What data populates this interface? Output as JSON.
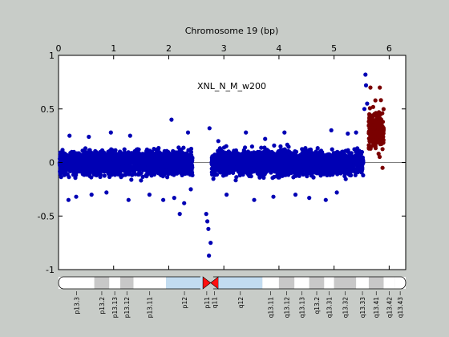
{
  "chart_data": {
    "type": "scatter",
    "title": "",
    "xlabel": "Chromosome 19 (bp)",
    "ylabel": "",
    "annotation": "XNL_N_M_w200",
    "xlim": [
      0,
      6.3
    ],
    "ylim": [
      -1,
      1
    ],
    "x_ticks": [
      0,
      1,
      2,
      3,
      4,
      5,
      6
    ],
    "y_ticks": [
      -1,
      -0.5,
      0,
      0.5,
      1
    ],
    "grid": false,
    "colors": {
      "normal": "#0000b4",
      "highlight": "#7a0000",
      "baseline": "#7f7f7f",
      "plot_bg": "#ffffff",
      "figure_bg": "#c8ccc8"
    },
    "series": [
      {
        "role": "normal",
        "segments": [
          {
            "x_range": [
              0.02,
              2.43
            ],
            "y_mean": 0.0,
            "y_sd": 0.07
          },
          {
            "x_range": [
              2.78,
              5.53
            ],
            "y_mean": 0.0,
            "y_sd": 0.07
          }
        ],
        "points": [
          {
            "x": 0.2,
            "y": 0.25
          },
          {
            "x": 0.18,
            "y": -0.35
          },
          {
            "x": 0.32,
            "y": -0.32
          },
          {
            "x": 0.55,
            "y": 0.24
          },
          {
            "x": 0.6,
            "y": -0.3
          },
          {
            "x": 0.87,
            "y": -0.28
          },
          {
            "x": 0.95,
            "y": 0.28
          },
          {
            "x": 1.27,
            "y": -0.35
          },
          {
            "x": 1.3,
            "y": 0.25
          },
          {
            "x": 1.65,
            "y": -0.3
          },
          {
            "x": 1.9,
            "y": -0.35
          },
          {
            "x": 2.05,
            "y": 0.4
          },
          {
            "x": 2.1,
            "y": -0.33
          },
          {
            "x": 2.2,
            "y": -0.48
          },
          {
            "x": 2.28,
            "y": -0.38
          },
          {
            "x": 2.35,
            "y": 0.28
          },
          {
            "x": 2.4,
            "y": -0.25
          },
          {
            "x": 2.68,
            "y": -0.48
          },
          {
            "x": 2.7,
            "y": -0.55
          },
          {
            "x": 2.72,
            "y": -0.62
          },
          {
            "x": 2.73,
            "y": -0.87
          },
          {
            "x": 2.74,
            "y": 0.32
          },
          {
            "x": 2.76,
            "y": -0.75
          },
          {
            "x": 2.9,
            "y": 0.2
          },
          {
            "x": 3.05,
            "y": -0.3
          },
          {
            "x": 3.4,
            "y": 0.28
          },
          {
            "x": 3.55,
            "y": -0.35
          },
          {
            "x": 3.75,
            "y": 0.22
          },
          {
            "x": 3.9,
            "y": -0.32
          },
          {
            "x": 4.1,
            "y": 0.28
          },
          {
            "x": 4.3,
            "y": -0.3
          },
          {
            "x": 4.55,
            "y": -0.33
          },
          {
            "x": 4.85,
            "y": -0.35
          },
          {
            "x": 4.95,
            "y": 0.3
          },
          {
            "x": 5.05,
            "y": -0.28
          },
          {
            "x": 5.25,
            "y": 0.27
          },
          {
            "x": 5.4,
            "y": 0.28
          },
          {
            "x": 5.55,
            "y": 0.5
          },
          {
            "x": 5.57,
            "y": 0.82
          },
          {
            "x": 5.58,
            "y": 0.72
          },
          {
            "x": 5.6,
            "y": 0.55
          }
        ]
      },
      {
        "role": "highlight",
        "segments": [
          {
            "x_range": [
              5.63,
              5.9
            ],
            "y_mean": 0.3,
            "y_sd": 0.11
          }
        ],
        "points": [
          {
            "x": 5.66,
            "y": 0.7
          },
          {
            "x": 5.75,
            "y": 0.58
          },
          {
            "x": 5.83,
            "y": 0.7
          },
          {
            "x": 5.64,
            "y": 0.45
          },
          {
            "x": 5.88,
            "y": -0.05
          }
        ]
      }
    ],
    "ideogram": {
      "bands": [
        {
          "name": "p13.3",
          "start": 0.0,
          "end": 0.65,
          "stain": "gneg"
        },
        {
          "name": "p13.2",
          "start": 0.65,
          "end": 0.92,
          "stain": "gpos25"
        },
        {
          "name": "p13.13",
          "start": 0.92,
          "end": 1.12,
          "stain": "gneg"
        },
        {
          "name": "p13.12",
          "start": 1.12,
          "end": 1.36,
          "stain": "gpos25"
        },
        {
          "name": "p13.11",
          "start": 1.36,
          "end": 1.95,
          "stain": "gneg"
        },
        {
          "name": "p12",
          "start": 1.95,
          "end": 2.62,
          "stain": "gvar"
        },
        {
          "name": "p11",
          "start": 2.62,
          "end": 2.76,
          "stain": "acen"
        },
        {
          "name": "q11",
          "start": 2.76,
          "end": 2.9,
          "stain": "acen"
        },
        {
          "name": "q12",
          "start": 2.9,
          "end": 3.7,
          "stain": "gvar"
        },
        {
          "name": "q13.11",
          "start": 3.7,
          "end": 4.0,
          "stain": "gneg"
        },
        {
          "name": "q13.12",
          "start": 4.0,
          "end": 4.28,
          "stain": "gpos25"
        },
        {
          "name": "q13.13",
          "start": 4.28,
          "end": 4.55,
          "stain": "gneg"
        },
        {
          "name": "q13.2",
          "start": 4.55,
          "end": 4.82,
          "stain": "gpos25"
        },
        {
          "name": "q13.31",
          "start": 4.82,
          "end": 5.0,
          "stain": "gneg"
        },
        {
          "name": "q13.32",
          "start": 5.0,
          "end": 5.4,
          "stain": "gpos25"
        },
        {
          "name": "q13.33",
          "start": 5.4,
          "end": 5.63,
          "stain": "gneg"
        },
        {
          "name": "q13.41",
          "start": 5.63,
          "end": 5.9,
          "stain": "gpos25"
        },
        {
          "name": "q13.42",
          "start": 5.9,
          "end": 6.1,
          "stain": "gneg"
        },
        {
          "name": "q13.43",
          "start": 6.1,
          "end": 6.3,
          "stain": "gneg"
        }
      ],
      "stain_colors": {
        "gneg": "#ffffff",
        "gpos25": "#c8c8c8",
        "gvar": "#c2dcf0",
        "acen": "#ff1010"
      }
    }
  }
}
